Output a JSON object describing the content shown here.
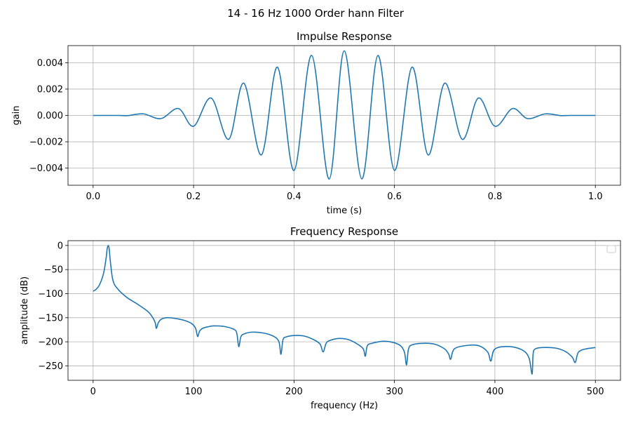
{
  "chart_data": [
    {
      "type": "line",
      "suptitle": "14 - 16 Hz 1000 Order hann Filter",
      "title": "Impulse Response",
      "xlabel": "time (s)",
      "ylabel": "gain",
      "xlim": [
        -0.05,
        1.05
      ],
      "ylim": [
        -0.0053,
        0.0053
      ],
      "xticks": [
        0.0,
        0.2,
        0.4,
        0.6,
        0.8,
        1.0
      ],
      "xtick_labels": [
        "0.0",
        "0.2",
        "0.4",
        "0.6",
        "0.8",
        "1.0"
      ],
      "yticks": [
        -0.004,
        -0.002,
        0.0,
        0.002,
        0.004
      ],
      "ytick_labels": [
        "−0.004",
        "−0.002",
        "0.000",
        "0.002",
        "0.004"
      ],
      "grid": true,
      "color": "#1f77b4",
      "series": [
        {
          "x": [
            0.0,
            0.05,
            0.07,
            0.1,
            0.135,
            0.17,
            0.2,
            0.235,
            0.27,
            0.3,
            0.335,
            0.367,
            0.4,
            0.435,
            0.47,
            0.5,
            0.535,
            0.567,
            0.6,
            0.635,
            0.667,
            0.7,
            0.735,
            0.767,
            0.8,
            0.835,
            0.865,
            0.9,
            0.93,
            0.95,
            1.0
          ],
          "y": [
            0.0,
            0.0,
            -1e-05,
            0.00012,
            -0.00024,
            0.00052,
            -0.00082,
            0.00132,
            -0.00181,
            0.00245,
            -0.003,
            0.00367,
            -0.00418,
            0.00456,
            -0.00483,
            0.0049,
            -0.00482,
            0.00455,
            -0.00418,
            0.00367,
            -0.003,
            0.00245,
            -0.00181,
            0.00132,
            -0.00082,
            0.00052,
            -0.00024,
            0.00012,
            -1e-05,
            0.0,
            0.0
          ]
        }
      ]
    },
    {
      "type": "line",
      "title": "Frequency Response",
      "xlabel": "frequency (Hz)",
      "ylabel": "amplitude (dB)",
      "xlim": [
        -25,
        525
      ],
      "ylim": [
        -280,
        10
      ],
      "xticks": [
        0,
        100,
        200,
        300,
        400,
        500
      ],
      "xtick_labels": [
        "0",
        "100",
        "200",
        "300",
        "400",
        "500"
      ],
      "yticks": [
        0,
        -50,
        -100,
        -150,
        -200,
        -250
      ],
      "ytick_labels": [
        "0",
        "−50",
        "−100",
        "−150",
        "−200",
        "−250"
      ],
      "grid": true,
      "legend": "upper right (empty)",
      "color": "#1f77b4",
      "series": [
        {
          "x": [
            0,
            3,
            6,
            9,
            11,
            13,
            14,
            15,
            16,
            17,
            19,
            21,
            24,
            28,
            35,
            45,
            55,
            60,
            62,
            63,
            65,
            68,
            73,
            80,
            90,
            98,
            102,
            104,
            106,
            109,
            114,
            120,
            130,
            140,
            143,
            145,
            147,
            150,
            158,
            170,
            180,
            185,
            187,
            189,
            192,
            200,
            210,
            220,
            226,
            229,
            232,
            236,
            245,
            255,
            264,
            269,
            271,
            273,
            278,
            288,
            298,
            306,
            310,
            312,
            314,
            318,
            330,
            340,
            350,
            354,
            356,
            360,
            375,
            385,
            393,
            396,
            400,
            415,
            428,
            434,
            437,
            438,
            440,
            447,
            460,
            470,
            477,
            480,
            483,
            490,
            500
          ],
          "y": [
            -95,
            -91,
            -83,
            -68,
            -52,
            -25,
            -7,
            0,
            -7,
            -30,
            -65,
            -80,
            -89,
            -98,
            -110,
            -123,
            -138,
            -152,
            -162,
            -172,
            -160,
            -153,
            -150,
            -151,
            -155,
            -162,
            -172,
            -189,
            -178,
            -172,
            -169,
            -167,
            -168,
            -174,
            -182,
            -210,
            -190,
            -184,
            -180,
            -182,
            -189,
            -200,
            -226,
            -196,
            -190,
            -187,
            -188,
            -196,
            -205,
            -221,
            -203,
            -197,
            -193,
            -196,
            -206,
            -215,
            -230,
            -208,
            -203,
            -199,
            -201,
            -208,
            -222,
            -248,
            -215,
            -206,
            -203,
            -205,
            -215,
            -226,
            -236,
            -214,
            -207,
            -209,
            -222,
            -240,
            -215,
            -210,
            -218,
            -234,
            -267,
            -226,
            -215,
            -212,
            -213,
            -220,
            -232,
            -243,
            -222,
            -215,
            -212
          ]
        }
      ]
    }
  ]
}
